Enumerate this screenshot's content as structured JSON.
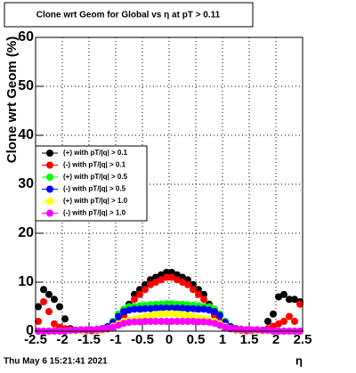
{
  "chart_data": {
    "type": "scatter",
    "title": "Clone wrt Geom for Global vs   η at pT > 0.11",
    "x_label": "η",
    "y_label": "Clone wrt Geom (%)",
    "footer": "Thu May  6 15:21:41 2021",
    "xlim": [
      -2.5,
      2.5
    ],
    "ylim": [
      0,
      60
    ],
    "xticks": [
      -2.5,
      -2,
      -1.5,
      -1,
      -0.5,
      0,
      0.5,
      1,
      1.5,
      2,
      2.5
    ],
    "yticks": [
      0,
      10,
      20,
      30,
      40,
      50,
      60
    ],
    "grid": true,
    "x": [
      -2.45,
      -2.35,
      -2.25,
      -2.15,
      -2.05,
      -1.95,
      -1.85,
      -1.75,
      -1.65,
      -1.55,
      -1.45,
      -1.35,
      -1.25,
      -1.15,
      -1.05,
      -0.95,
      -0.85,
      -0.75,
      -0.65,
      -0.55,
      -0.45,
      -0.35,
      -0.25,
      -0.15,
      -0.05,
      0.05,
      0.15,
      0.25,
      0.35,
      0.45,
      0.55,
      0.65,
      0.75,
      0.85,
      0.95,
      1.05,
      1.15,
      1.25,
      1.35,
      1.45,
      1.55,
      1.65,
      1.75,
      1.85,
      1.95,
      2.05,
      2.15,
      2.25,
      2.35,
      2.45
    ],
    "series": [
      {
        "name": "(+) with pT/|q| > 0.1",
        "color": "#000000",
        "values": [
          5,
          8.5,
          7.5,
          6.5,
          5,
          2.5,
          0.5,
          0.2,
          0.1,
          0.1,
          0.1,
          0.2,
          0.3,
          0.5,
          1,
          2,
          3.5,
          5.5,
          7.5,
          8.5,
          9.5,
          10.5,
          11,
          11.5,
          12,
          12,
          11.5,
          11,
          10.5,
          9.5,
          8.5,
          7.5,
          5.5,
          3.5,
          2,
          1,
          0.5,
          0.3,
          0.2,
          0.1,
          0.1,
          0.1,
          0.2,
          2,
          3.5,
          7,
          7.5,
          6.5,
          6.5,
          6
        ]
      },
      {
        "name": "(-) with pT/|q| > 0.1",
        "color": "#ff0000",
        "values": [
          2,
          6,
          4,
          1.5,
          0.8,
          0.5,
          0.3,
          0.2,
          0.1,
          0.1,
          0.1,
          0.2,
          0.3,
          0.5,
          1,
          2,
          3,
          5,
          6.5,
          7.5,
          8.5,
          9.5,
          10,
          10.5,
          11,
          11,
          10.5,
          10,
          9.5,
          8.5,
          7.5,
          6.5,
          5,
          3,
          2,
          1,
          0.5,
          0.3,
          0.2,
          0.1,
          0.1,
          0.1,
          0.2,
          0.5,
          1,
          1.5,
          2,
          3,
          2,
          5.5
        ]
      },
      {
        "name": "(+) with pT/|q| > 0.5",
        "color": "#00ff00",
        "values": [
          0,
          0,
          0,
          0,
          0,
          0,
          0.1,
          0.1,
          0.1,
          0.2,
          0.3,
          0.4,
          0.6,
          1,
          2,
          3.5,
          4.5,
          5,
          5,
          5.2,
          5.3,
          5.4,
          5.5,
          5.5,
          5.6,
          5.6,
          5.5,
          5.5,
          5.4,
          5.3,
          5.2,
          5,
          5,
          4.5,
          3.5,
          2,
          1,
          0.6,
          0.4,
          0.3,
          0.2,
          0.1,
          0.1,
          0.1,
          0,
          0,
          0,
          0,
          0,
          0
        ]
      },
      {
        "name": "(-) with pT/|q| > 0.5",
        "color": "#0000ff",
        "values": [
          0,
          0,
          0,
          0,
          0,
          0,
          0.1,
          0.1,
          0.1,
          0.2,
          0.3,
          0.4,
          0.5,
          0.9,
          1.8,
          3,
          4,
          4.3,
          4.5,
          4.5,
          4.6,
          4.6,
          4.7,
          4.7,
          4.7,
          4.7,
          4.7,
          4.7,
          4.6,
          4.6,
          4.5,
          4.5,
          4.3,
          4,
          3.2,
          1.8,
          0.9,
          0.5,
          0.4,
          0.3,
          0.2,
          0.1,
          0.1,
          0.1,
          0,
          0,
          0,
          0,
          0,
          0
        ]
      },
      {
        "name": "(+) with pT/|q| > 1.0",
        "color": "#ffff00",
        "values": [
          0,
          0,
          0,
          0,
          0,
          0,
          0.1,
          0.1,
          0.1,
          0.2,
          0.3,
          0.3,
          0.4,
          0.6,
          1,
          1.5,
          2,
          2.3,
          2.5,
          2.8,
          3,
          3.2,
          3.4,
          3.5,
          3.6,
          3.6,
          3.5,
          3.4,
          3.2,
          3,
          2.8,
          2.5,
          2.3,
          2,
          1.5,
          1,
          0.6,
          0.4,
          0.3,
          0.3,
          0.2,
          0.1,
          0.1,
          0.1,
          0,
          0,
          0,
          0,
          0,
          0
        ]
      },
      {
        "name": "(-) with pT/|q| > 1.0",
        "color": "#ff00ff",
        "values": [
          0,
          0,
          0,
          0,
          0,
          0,
          0.2,
          0.2,
          0.3,
          0.3,
          0.3,
          0.4,
          0.5,
          0.6,
          0.8,
          1.2,
          1.6,
          1.8,
          1.9,
          1.9,
          2,
          2,
          2,
          2,
          2,
          2,
          2,
          2,
          2,
          2,
          1.9,
          1.9,
          1.8,
          1.6,
          1.2,
          0.8,
          0.6,
          0.5,
          0.4,
          0.3,
          0.3,
          0.3,
          0.2,
          0.2,
          0,
          0,
          0,
          0,
          0,
          0
        ]
      }
    ]
  }
}
